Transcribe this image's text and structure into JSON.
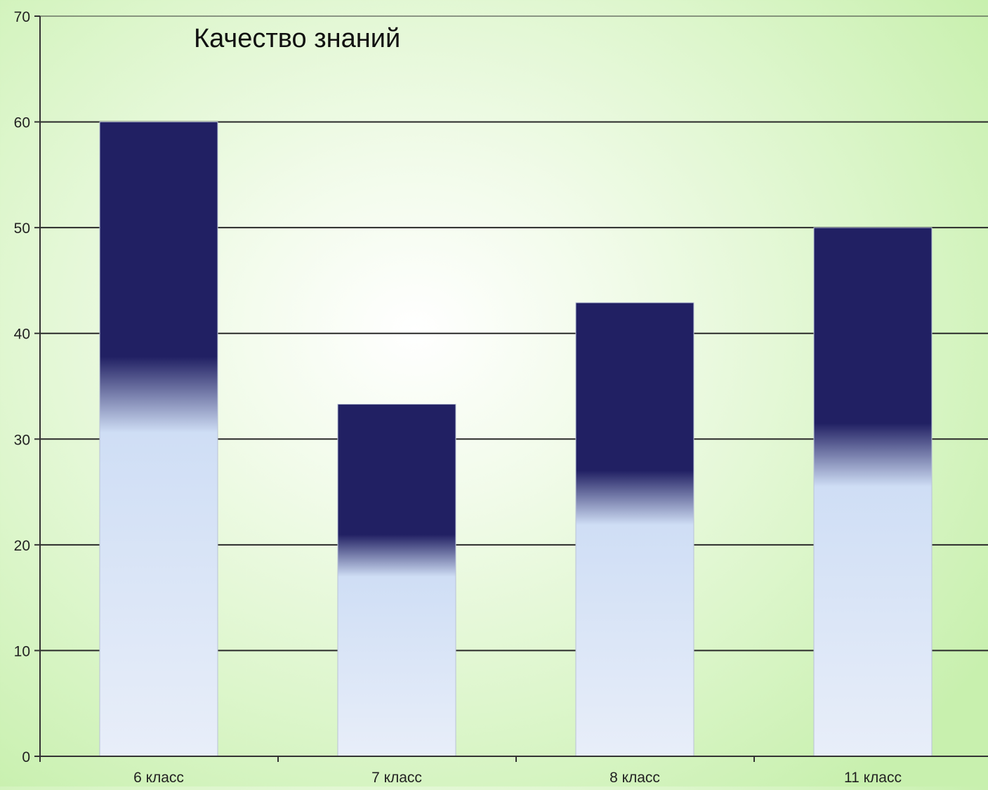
{
  "chart_data": {
    "type": "bar",
    "title": "Качество знаний",
    "xlabel": "",
    "ylabel": "",
    "categories": [
      "6 класс",
      "7 класс",
      "8 класс",
      "11 класс"
    ],
    "values": [
      60,
      33.3,
      42.9,
      50
    ],
    "ylim": [
      0,
      70
    ],
    "yticks": [
      0,
      10,
      20,
      30,
      40,
      50,
      60,
      70
    ],
    "grid": true,
    "legend": "none",
    "colors": {
      "bar_top": "#212063",
      "bar_bottom_light": "#cfdef5",
      "bar_base": "#e8eef9",
      "gridline": "#2a2a2a",
      "axis": "#333333",
      "tick_label": "#222222"
    }
  }
}
